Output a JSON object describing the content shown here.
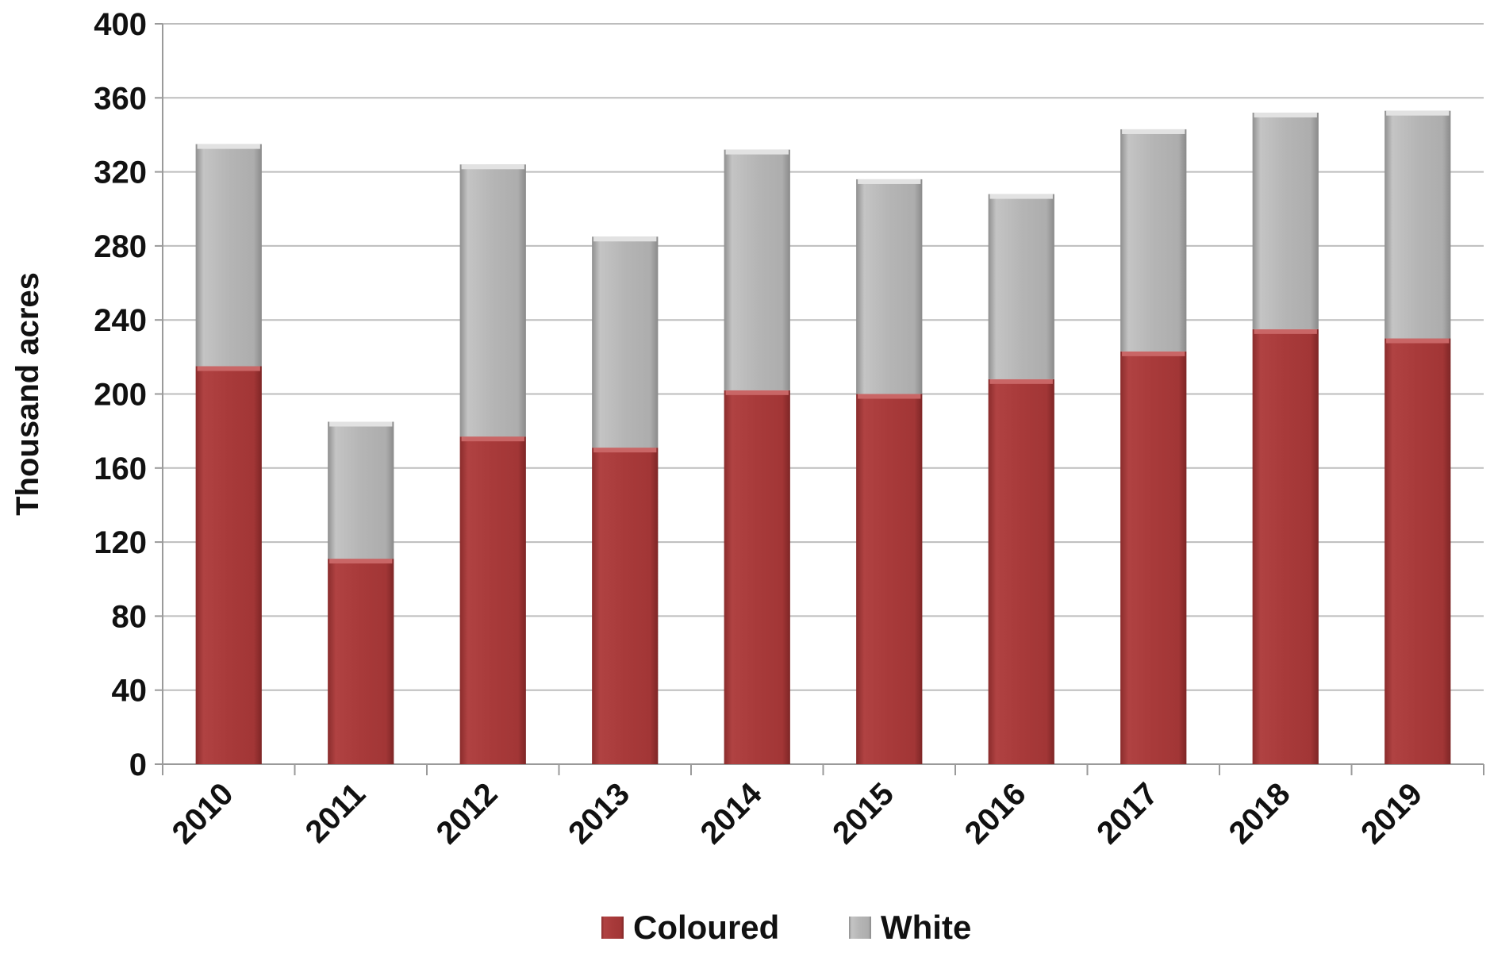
{
  "chart_data": {
    "type": "bar",
    "stacked": true,
    "categories": [
      "2010",
      "2011",
      "2012",
      "2013",
      "2014",
      "2015",
      "2016",
      "2017",
      "2018",
      "2019"
    ],
    "series": [
      {
        "name": "Coloured",
        "color": "#a83a3a",
        "values": [
          215,
          111,
          177,
          171,
          202,
          200,
          208,
          223,
          235,
          230
        ]
      },
      {
        "name": "White",
        "color": "#b5b5b5",
        "values": [
          120,
          74,
          147,
          114,
          130,
          116,
          100,
          120,
          117,
          123
        ]
      }
    ],
    "title": "",
    "xlabel": "",
    "ylabel": "Thousand acres",
    "ylim": [
      0,
      400
    ],
    "yticks": [
      "0",
      "40",
      "80",
      "120",
      "160",
      "200",
      "240",
      "280",
      "320",
      "360",
      "400"
    ],
    "grid": true,
    "legend_position": "bottom-center"
  }
}
